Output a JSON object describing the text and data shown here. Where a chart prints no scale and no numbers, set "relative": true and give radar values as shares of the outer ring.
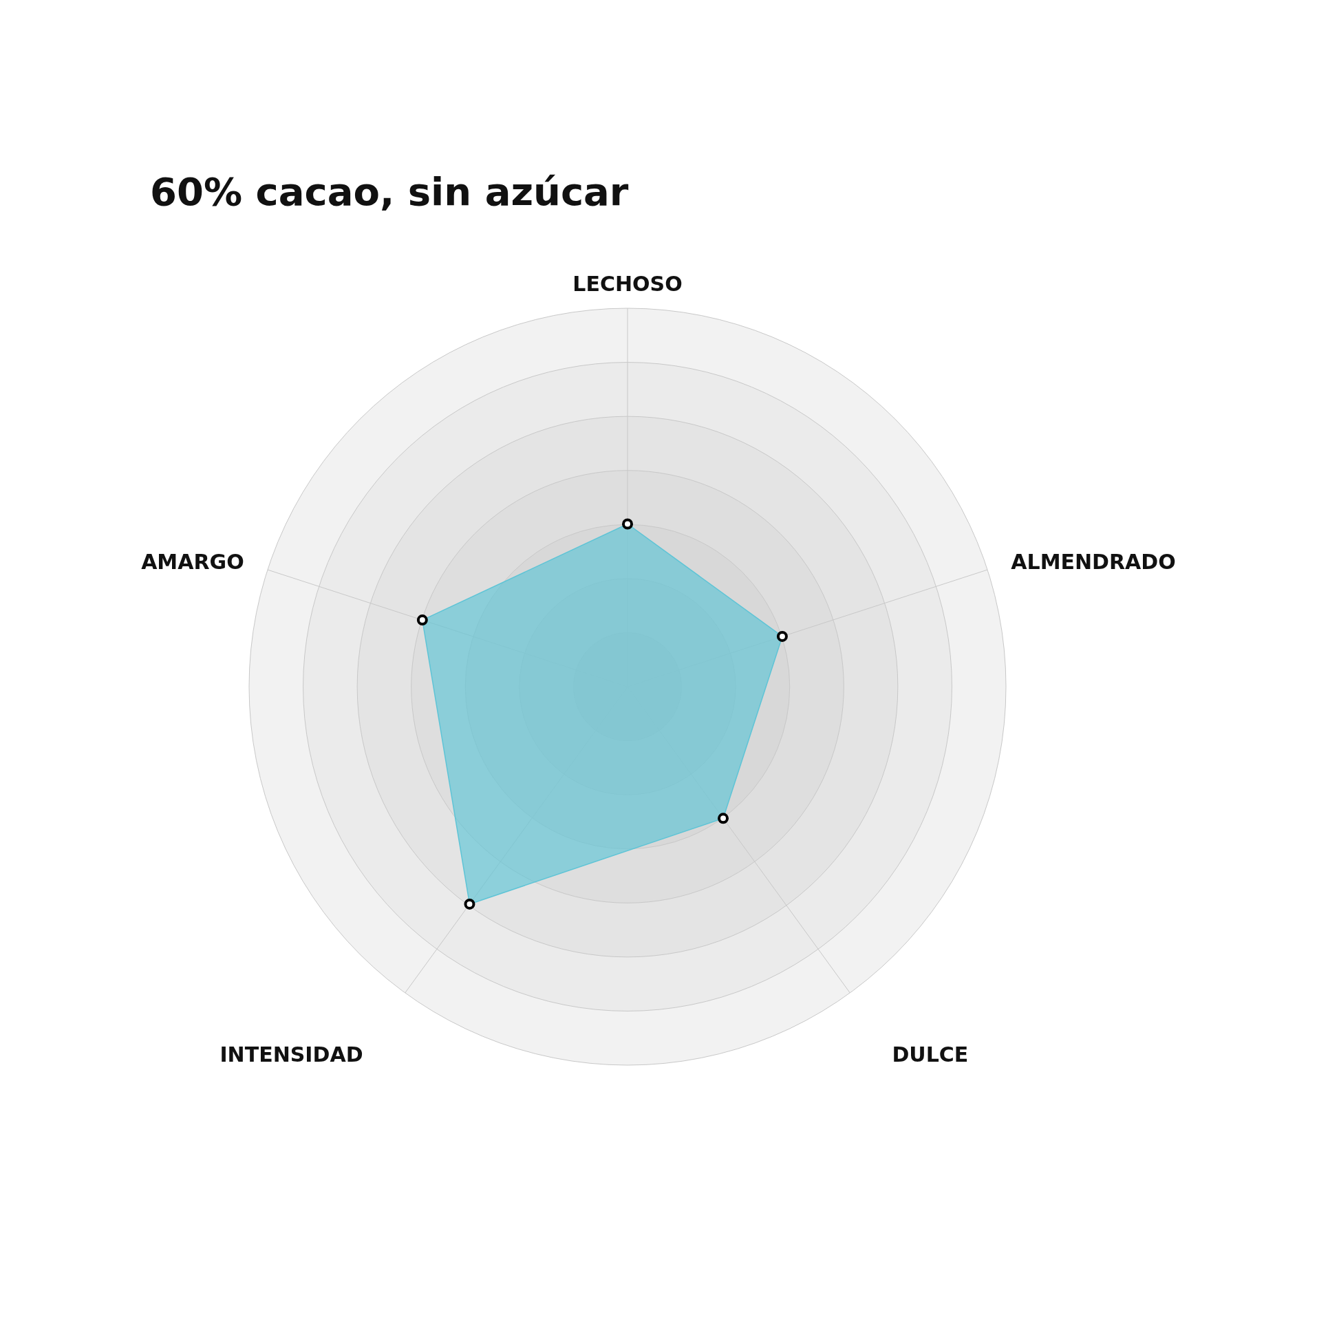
{
  "chart_data": {
    "type": "radar",
    "title": "60% cacao, sin azúcar",
    "categories": [
      "LECHOSO",
      "ALMENDRADO",
      "DULCE",
      "INTENSIDAD",
      "AMARGO"
    ],
    "series": [
      {
        "color": "#5ec4d6",
        "values": [
          0.43,
          0.43,
          0.43,
          0.71,
          0.57
        ]
      }
    ],
    "relative": true,
    "grid": true,
    "marker": "circle"
  }
}
